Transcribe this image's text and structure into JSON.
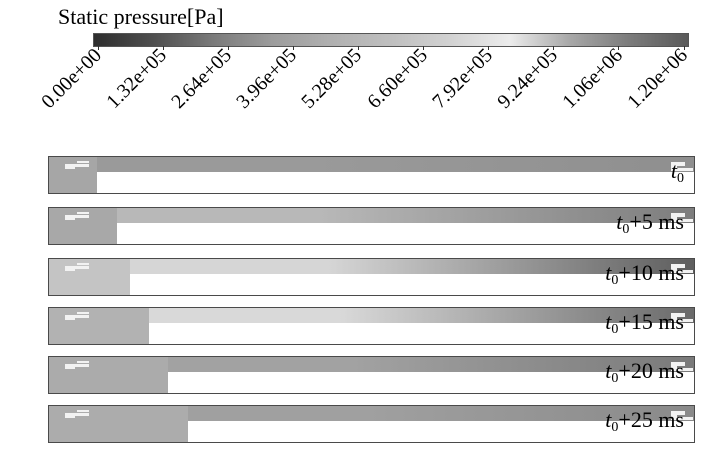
{
  "colorbar": {
    "title": "Static pressure[Pa]",
    "tick_labels": [
      "0.00e+00",
      "1.32e+05",
      "2.64e+05",
      "3.96e+05",
      "5.28e+05",
      "6.60e+05",
      "7.92e+05",
      "9.24e+05",
      "1.06e+06",
      "1.20e+06"
    ],
    "gradient": [
      "#2e2e2e",
      "#4f4f4f",
      "#7a7a7a",
      "#9c9c9c",
      "#b0b0b0",
      "#bfbfbf",
      "#d2d2d2",
      "#ececec",
      "#a8a8a8",
      "#7c7c7c",
      "#5a5a5a"
    ]
  },
  "frames": [
    {
      "time_var": "t",
      "time_sub": "0",
      "time_offset": "",
      "front_fraction": 0.075,
      "left_shade": "#a6a6a6",
      "mid_shade": "#9a9a9a",
      "right_shade": "#8f8f8f"
    },
    {
      "time_var": "t",
      "time_sub": "0",
      "time_offset": "+5 ms",
      "front_fraction": 0.105,
      "left_shade": "#a8a8a8",
      "mid_shade": "#b8b8b8",
      "right_shade": "#7d7d7d"
    },
    {
      "time_var": "t",
      "time_sub": "0",
      "time_offset": "+10 ms",
      "front_fraction": 0.125,
      "left_shade": "#c4c4c4",
      "mid_shade": "#d6d6d6",
      "right_shade": "#5e5e5e"
    },
    {
      "time_var": "t",
      "time_sub": "0",
      "time_offset": "+15 ms",
      "front_fraction": 0.155,
      "left_shade": "#b2b2b2",
      "mid_shade": "#d9d9d9",
      "right_shade": "#6a6a6a"
    },
    {
      "time_var": "t",
      "time_sub": "0",
      "time_offset": "+20 ms",
      "front_fraction": 0.185,
      "left_shade": "#ababab",
      "mid_shade": "#a2a2a2",
      "right_shade": "#7a7a7a"
    },
    {
      "time_var": "t",
      "time_sub": "0",
      "time_offset": "+25 ms",
      "front_fraction": 0.215,
      "left_shade": "#acacac",
      "mid_shade": "#a0a0a0",
      "right_shade": "#8a8a8a"
    }
  ]
}
